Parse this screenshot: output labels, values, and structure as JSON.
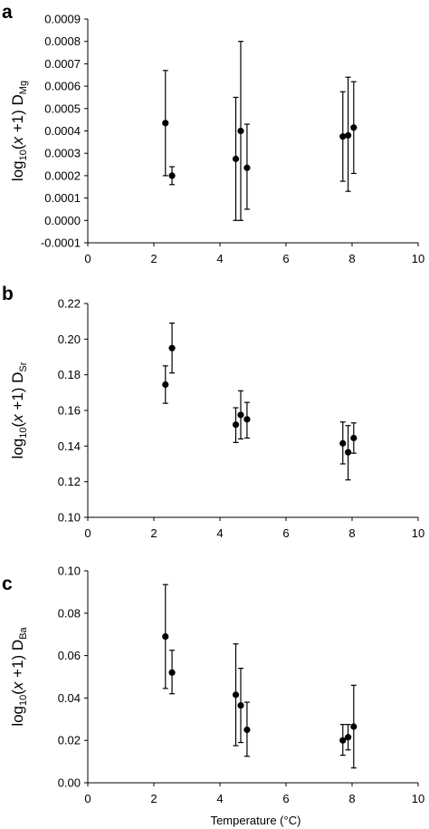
{
  "chart_data": [
    {
      "type": "scatter",
      "panel": "a",
      "ylabel": {
        "prefix": "log",
        "sub1": "10",
        "mid": "(",
        "italic": "x",
        "rest": " +1) D",
        "sub2": "Mg"
      },
      "xlabel": "",
      "xlim": [
        0,
        10
      ],
      "ylim": [
        -0.0001,
        0.0009
      ],
      "xticks": [
        "0",
        "2",
        "4",
        "6",
        "8",
        "10"
      ],
      "yticks": [
        "-0.0001",
        "0.0000",
        "0.0001",
        "0.0002",
        "0.0003",
        "0.0004",
        "0.0005",
        "0.0006",
        "0.0007",
        "0.0008",
        "0.0009"
      ],
      "points": [
        {
          "x": 2.35,
          "y": 0.000435,
          "lo": 0.0002,
          "hi": 0.00067
        },
        {
          "x": 2.55,
          "y": 0.0002,
          "lo": 0.00016,
          "hi": 0.00024
        },
        {
          "x": 4.48,
          "y": 0.000275,
          "lo": 0.0,
          "hi": 0.00055
        },
        {
          "x": 4.63,
          "y": 0.0004,
          "lo": 0.0,
          "hi": 0.0008
        },
        {
          "x": 4.82,
          "y": 0.000235,
          "lo": 5e-05,
          "hi": 0.00043
        },
        {
          "x": 7.72,
          "y": 0.000375,
          "lo": 0.000175,
          "hi": 0.000575
        },
        {
          "x": 7.88,
          "y": 0.00038,
          "lo": 0.00013,
          "hi": 0.00064
        },
        {
          "x": 8.05,
          "y": 0.000415,
          "lo": 0.00021,
          "hi": 0.00062
        }
      ]
    },
    {
      "type": "scatter",
      "panel": "b",
      "ylabel": {
        "prefix": "log",
        "sub1": "10",
        "mid": "(",
        "italic": "x",
        "rest": " +1) D",
        "sub2": "Sr"
      },
      "xlabel": "",
      "xlim": [
        0,
        10
      ],
      "ylim": [
        0.1,
        0.22
      ],
      "xticks": [
        "0",
        "2",
        "4",
        "6",
        "8",
        "10"
      ],
      "yticks": [
        "0.10",
        "0.12",
        "0.14",
        "0.16",
        "0.18",
        "0.20",
        "0.22"
      ],
      "points": [
        {
          "x": 2.35,
          "y": 0.1745,
          "lo": 0.164,
          "hi": 0.185
        },
        {
          "x": 2.55,
          "y": 0.195,
          "lo": 0.181,
          "hi": 0.209
        },
        {
          "x": 4.48,
          "y": 0.152,
          "lo": 0.142,
          "hi": 0.1615
        },
        {
          "x": 4.63,
          "y": 0.1575,
          "lo": 0.144,
          "hi": 0.171
        },
        {
          "x": 4.82,
          "y": 0.155,
          "lo": 0.1445,
          "hi": 0.1645
        },
        {
          "x": 7.72,
          "y": 0.1415,
          "lo": 0.13,
          "hi": 0.1535
        },
        {
          "x": 7.88,
          "y": 0.1365,
          "lo": 0.121,
          "hi": 0.1515
        },
        {
          "x": 8.05,
          "y": 0.1445,
          "lo": 0.136,
          "hi": 0.153
        }
      ]
    },
    {
      "type": "scatter",
      "panel": "c",
      "ylabel": {
        "prefix": "log",
        "sub1": "10",
        "mid": "(",
        "italic": "x",
        "rest": " +1) D",
        "sub2": "Ba"
      },
      "xlabel": "Temperature (°C)",
      "xlim": [
        0,
        10
      ],
      "ylim": [
        0,
        0.1
      ],
      "xticks": [
        "0",
        "2",
        "4",
        "6",
        "8",
        "10"
      ],
      "yticks": [
        "0.00",
        "0.02",
        "0.04",
        "0.06",
        "0.08",
        "0.10"
      ],
      "points": [
        {
          "x": 2.35,
          "y": 0.069,
          "lo": 0.0445,
          "hi": 0.0935
        },
        {
          "x": 2.55,
          "y": 0.052,
          "lo": 0.042,
          "hi": 0.0625
        },
        {
          "x": 4.48,
          "y": 0.0415,
          "lo": 0.0175,
          "hi": 0.0655
        },
        {
          "x": 4.63,
          "y": 0.0365,
          "lo": 0.019,
          "hi": 0.054
        },
        {
          "x": 4.82,
          "y": 0.025,
          "lo": 0.0125,
          "hi": 0.038
        },
        {
          "x": 7.72,
          "y": 0.02,
          "lo": 0.013,
          "hi": 0.0275
        },
        {
          "x": 7.88,
          "y": 0.0215,
          "lo": 0.0155,
          "hi": 0.0275
        },
        {
          "x": 8.05,
          "y": 0.0265,
          "lo": 0.007,
          "hi": 0.046
        }
      ]
    }
  ]
}
